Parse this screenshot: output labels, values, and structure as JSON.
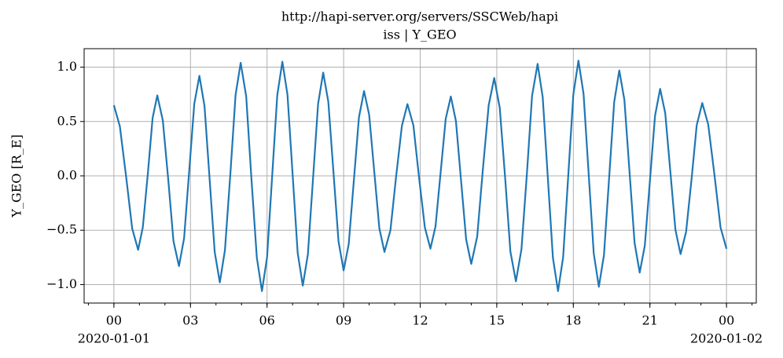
{
  "chart_data": {
    "type": "line",
    "title": "http://hapi-server.org/servers/SSCWeb/hapi",
    "subtitle": "iss | Y_GEO",
    "y_label": "Y_GEO [R_E]",
    "date_labels": [
      "2020-01-01",
      "2020-01-02"
    ],
    "x": [
      0,
      14,
      29,
      43,
      57,
      68,
      80,
      91,
      102,
      115,
      128,
      140,
      153,
      165,
      177,
      189,
      201,
      213,
      225,
      237,
      249,
      261,
      274,
      286,
      298,
      311,
      323,
      336,
      348,
      360,
      372,
      384,
      396,
      408,
      420,
      432,
      444,
      456,
      468,
      480,
      492,
      504,
      516,
      528,
      540,
      552,
      564,
      576,
      588,
      600,
      612,
      624,
      636,
      650,
      663,
      677,
      690,
      704,
      717,
      731,
      744,
      756,
      768,
      780,
      792,
      804,
      816,
      828,
      840,
      854,
      867,
      881,
      894,
      907,
      920,
      932,
      945,
      958,
      971,
      983,
      996,
      1008,
      1020,
      1032,
      1044,
      1056,
      1068,
      1080,
      1092,
      1104,
      1116,
      1128,
      1140,
      1152,
      1164,
      1176,
      1188,
      1200,
      1212,
      1224,
      1236,
      1248,
      1260,
      1272,
      1284,
      1296,
      1308,
      1320,
      1332,
      1345,
      1358,
      1370,
      1383,
      1397,
      1412,
      1426,
      1440
    ],
    "series": [
      {
        "name": "Y_GEO",
        "color": "#1f77b4",
        "values": [
          0.65,
          0.455,
          -0.015,
          -0.485,
          -0.68,
          -0.472,
          0.03,
          0.532,
          0.74,
          0.51,
          -0.045,
          -0.6,
          -0.83,
          -0.574,
          0.045,
          0.664,
          0.92,
          0.642,
          -0.03,
          -0.702,
          -0.98,
          -0.684,
          0.03,
          0.744,
          1.04,
          0.732,
          -0.01,
          -0.752,
          -1.06,
          -0.751,
          -0.005,
          0.741,
          1.05,
          0.748,
          0.02,
          -0.708,
          -1.01,
          -0.723,
          -0.03,
          0.663,
          0.95,
          0.683,
          0.04,
          -0.603,
          -0.87,
          -0.628,
          -0.045,
          0.538,
          0.78,
          0.563,
          0.04,
          -0.483,
          -0.7,
          -0.501,
          -0.02,
          0.461,
          0.66,
          0.465,
          -0.005,
          -0.475,
          -0.67,
          -0.465,
          0.03,
          0.525,
          0.73,
          0.504,
          -0.04,
          -0.584,
          -0.81,
          -0.559,
          0.045,
          0.649,
          0.9,
          0.626,
          -0.035,
          -0.696,
          -0.97,
          -0.677,
          0.03,
          0.737,
          1.03,
          0.724,
          -0.015,
          -0.754,
          -1.06,
          -0.749,
          0,
          0.749,
          1.06,
          0.755,
          0.02,
          -0.715,
          -1.02,
          -0.728,
          -0.025,
          0.678,
          0.97,
          0.698,
          0.04,
          -0.618,
          -0.89,
          -0.642,
          -0.045,
          0.552,
          0.8,
          0.577,
          0.04,
          -0.497,
          -0.72,
          -0.516,
          -0.025,
          0.466,
          0.67,
          0.474,
          0,
          -0.474,
          -0.67
        ]
      }
    ],
    "xlim": [
      -70,
      1510
    ],
    "xticks": [
      {
        "value": 0,
        "label": "00"
      },
      {
        "value": 180,
        "label": "03"
      },
      {
        "value": 360,
        "label": "06"
      },
      {
        "value": 540,
        "label": "09"
      },
      {
        "value": 720,
        "label": "12"
      },
      {
        "value": 900,
        "label": "15"
      },
      {
        "value": 1080,
        "label": "18"
      },
      {
        "value": 1260,
        "label": "21"
      },
      {
        "value": 1440,
        "label": "00"
      }
    ],
    "xminorticks": [
      -60,
      0,
      60,
      120,
      180,
      240,
      300,
      360,
      420,
      480,
      540,
      600,
      660,
      720,
      780,
      840,
      900,
      960,
      1020,
      1080,
      1140,
      1200,
      1260,
      1320,
      1380,
      1440,
      1500
    ],
    "ylim": [
      -1.17,
      1.17
    ],
    "yticks": [
      {
        "value": -1,
        "label": "−1.0"
      },
      {
        "value": -0.5,
        "label": "−0.5"
      },
      {
        "value": 0,
        "label": "0.0"
      },
      {
        "value": 0.5,
        "label": "0.5"
      },
      {
        "value": 1,
        "label": "1.0"
      }
    ],
    "grid": true
  }
}
